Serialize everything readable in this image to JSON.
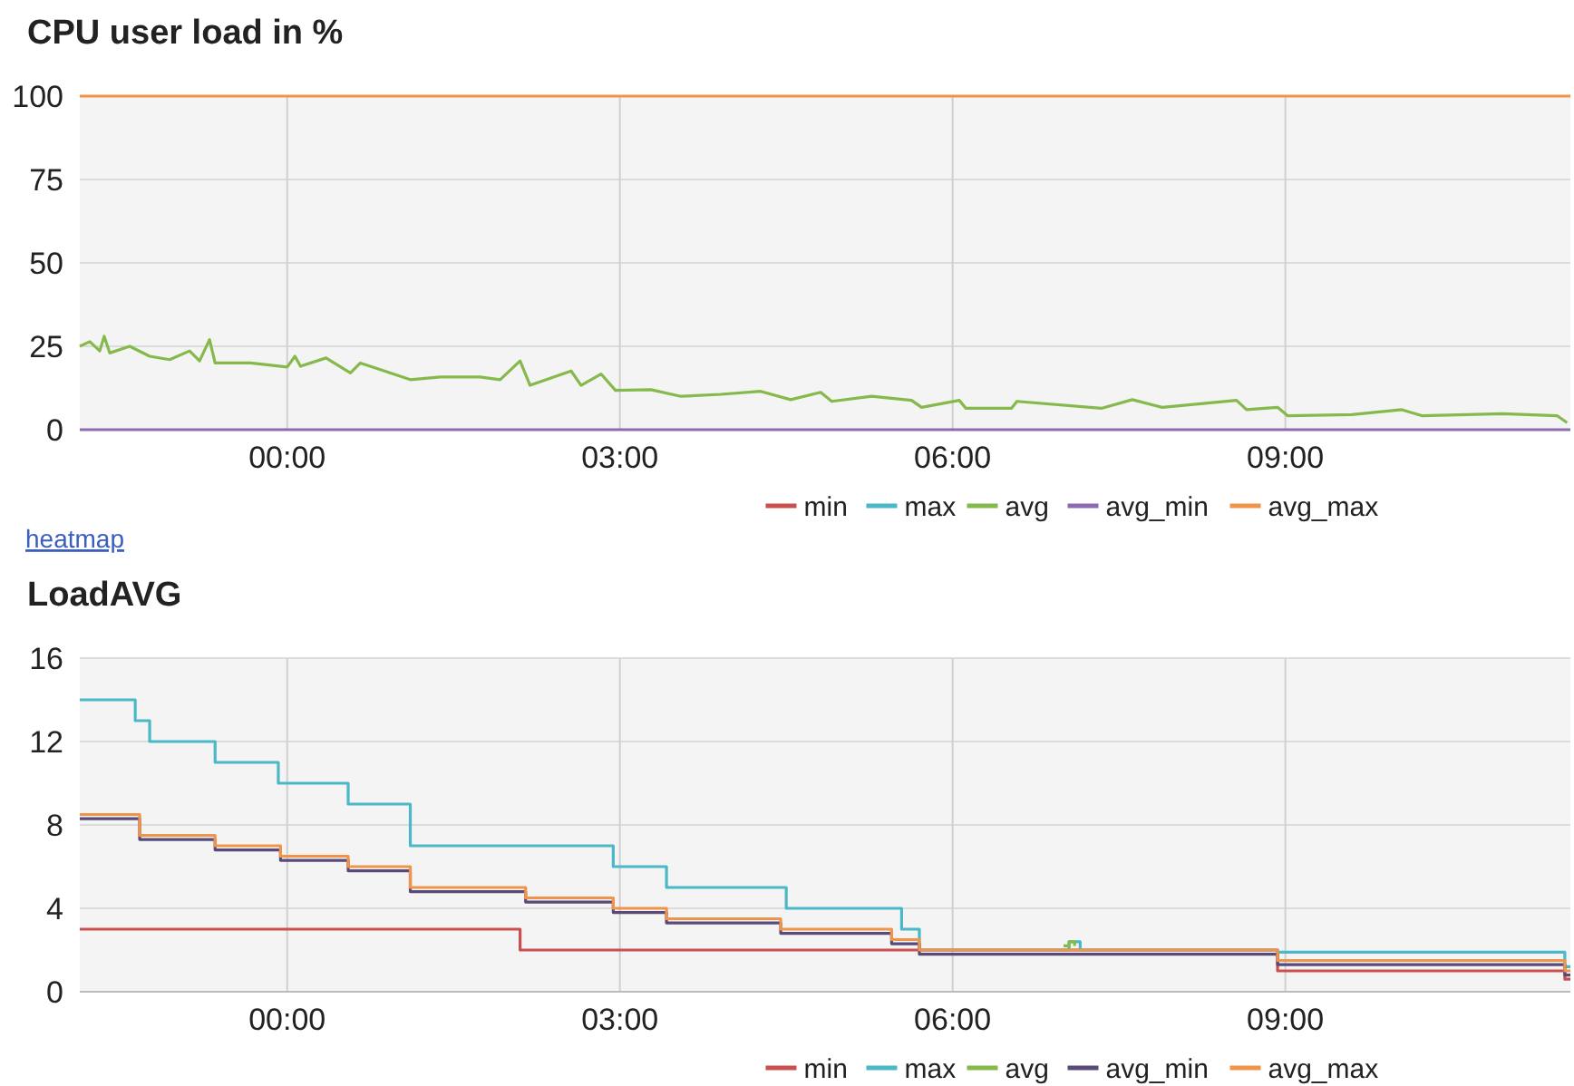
{
  "chart_data": [
    {
      "type": "line",
      "title": "CPU user load in %",
      "annotations": [
        "heatmap"
      ],
      "xlim": [
        -1.87,
        11.57
      ],
      "xticks": [
        {
          "value": 0,
          "label": "00:00"
        },
        {
          "value": 3,
          "label": "03:00"
        },
        {
          "value": 6,
          "label": "06:00"
        },
        {
          "value": 9,
          "label": "09:00"
        }
      ],
      "ylim": [
        0,
        100
      ],
      "yticks": [
        0,
        25,
        50,
        75,
        100
      ],
      "grid": true,
      "legend": "bottom",
      "series": [
        {
          "name": "min",
          "color": "#c9504f"
        },
        {
          "name": "max",
          "color": "#4bb8c8"
        },
        {
          "name": "avg",
          "color": "#86b94c",
          "x": [
            -1.87,
            -1.78,
            -1.69,
            -1.65,
            -1.6,
            -1.42,
            -1.24,
            -1.06,
            -0.88,
            -0.79,
            -0.7,
            -0.65,
            -0.33,
            0,
            0.07,
            0.12,
            0.35,
            0.57,
            0.66,
            0.84,
            1.11,
            1.38,
            1.74,
            1.92,
            2.1,
            2.19,
            2.56,
            2.65,
            2.83,
            2.96,
            3.28,
            3.55,
            3.91,
            4.27,
            4.54,
            4.81,
            4.91,
            5.27,
            5.63,
            5.72,
            6.06,
            6.12,
            6.53,
            6.58,
            7.34,
            7.62,
            7.89,
            8.56,
            8.65,
            8.93,
            9.02,
            9.6,
            10.05,
            10.23,
            10.96,
            11.45,
            11.54
          ],
          "values": [
            25,
            26.4,
            23.6,
            28,
            23,
            25,
            22,
            21,
            23.6,
            20.6,
            27,
            20,
            20,
            18.8,
            22,
            19,
            21.5,
            17,
            20,
            18,
            15,
            15.8,
            15.8,
            15,
            20.6,
            13.3,
            17.6,
            13.3,
            16.7,
            11.8,
            12,
            10,
            10.6,
            11.5,
            9,
            11.2,
            8.5,
            10,
            8.8,
            6.7,
            8.8,
            6.4,
            6.4,
            8.5,
            6.4,
            9,
            6.7,
            8.8,
            6,
            6.7,
            4.2,
            4.5,
            6,
            4.2,
            4.8,
            4.2,
            2.1
          ]
        },
        {
          "name": "avg_min",
          "color": "#8c6bb1",
          "x": [
            -1.87,
            11.57
          ],
          "values": [
            0,
            0
          ]
        },
        {
          "name": "avg_max",
          "color": "#f0944a",
          "x": [
            -1.87,
            11.57
          ],
          "values": [
            100,
            100
          ]
        }
      ]
    },
    {
      "type": "step",
      "title": "LoadAVG",
      "xlim": [
        -1.87,
        11.57
      ],
      "xticks": [
        {
          "value": 0,
          "label": "00:00"
        },
        {
          "value": 3,
          "label": "03:00"
        },
        {
          "value": 6,
          "label": "06:00"
        },
        {
          "value": 9,
          "label": "09:00"
        }
      ],
      "ylim": [
        0,
        16
      ],
      "yticks": [
        0,
        4,
        8,
        12,
        16
      ],
      "grid": true,
      "legend": "bottom",
      "series": [
        {
          "name": "min",
          "color": "#c9504f",
          "x": [
            -1.87,
            2.1,
            8.93,
            11.52,
            11.57
          ],
          "values": [
            3,
            2,
            1,
            0.6,
            0.6
          ]
        },
        {
          "name": "max",
          "color": "#4bb8c8",
          "x": [
            -1.87,
            -1.37,
            -1.24,
            -0.65,
            -0.08,
            0.55,
            1.11,
            2.94,
            3.42,
            4.5,
            5.54,
            5.7,
            7.05,
            7.15,
            8.93,
            11.52,
            11.57
          ],
          "values": [
            14,
            13,
            12,
            11,
            10,
            9,
            7,
            6,
            5,
            4,
            3,
            2,
            2.4,
            2,
            1.9,
            1.2,
            1.2
          ]
        },
        {
          "name": "avg",
          "color": "#86b94c",
          "x": [
            7.0,
            7.05,
            7.1
          ],
          "values": [
            2.2,
            2.4,
            2.2
          ]
        },
        {
          "name": "avg_min",
          "color": "#5a4a7a",
          "x": [
            -1.87,
            -1.33,
            -0.65,
            -0.06,
            0.55,
            1.11,
            2.15,
            2.94,
            3.42,
            4.45,
            5.45,
            5.7,
            8.93,
            11.52,
            11.57
          ],
          "values": [
            8.3,
            7.3,
            6.8,
            6.3,
            5.8,
            4.8,
            4.3,
            3.8,
            3.3,
            2.8,
            2.3,
            1.8,
            1.3,
            0.8,
            0.8
          ]
        },
        {
          "name": "avg_max",
          "color": "#f0944a",
          "x": [
            -1.87,
            -1.33,
            -0.65,
            -0.06,
            0.55,
            1.11,
            2.15,
            2.94,
            3.42,
            4.45,
            5.45,
            5.7,
            8.93,
            11.52,
            11.57
          ],
          "values": [
            8.5,
            7.5,
            7,
            6.5,
            6,
            5,
            4.5,
            4,
            3.5,
            3,
            2.5,
            2,
            1.5,
            1,
            1
          ]
        }
      ]
    }
  ]
}
